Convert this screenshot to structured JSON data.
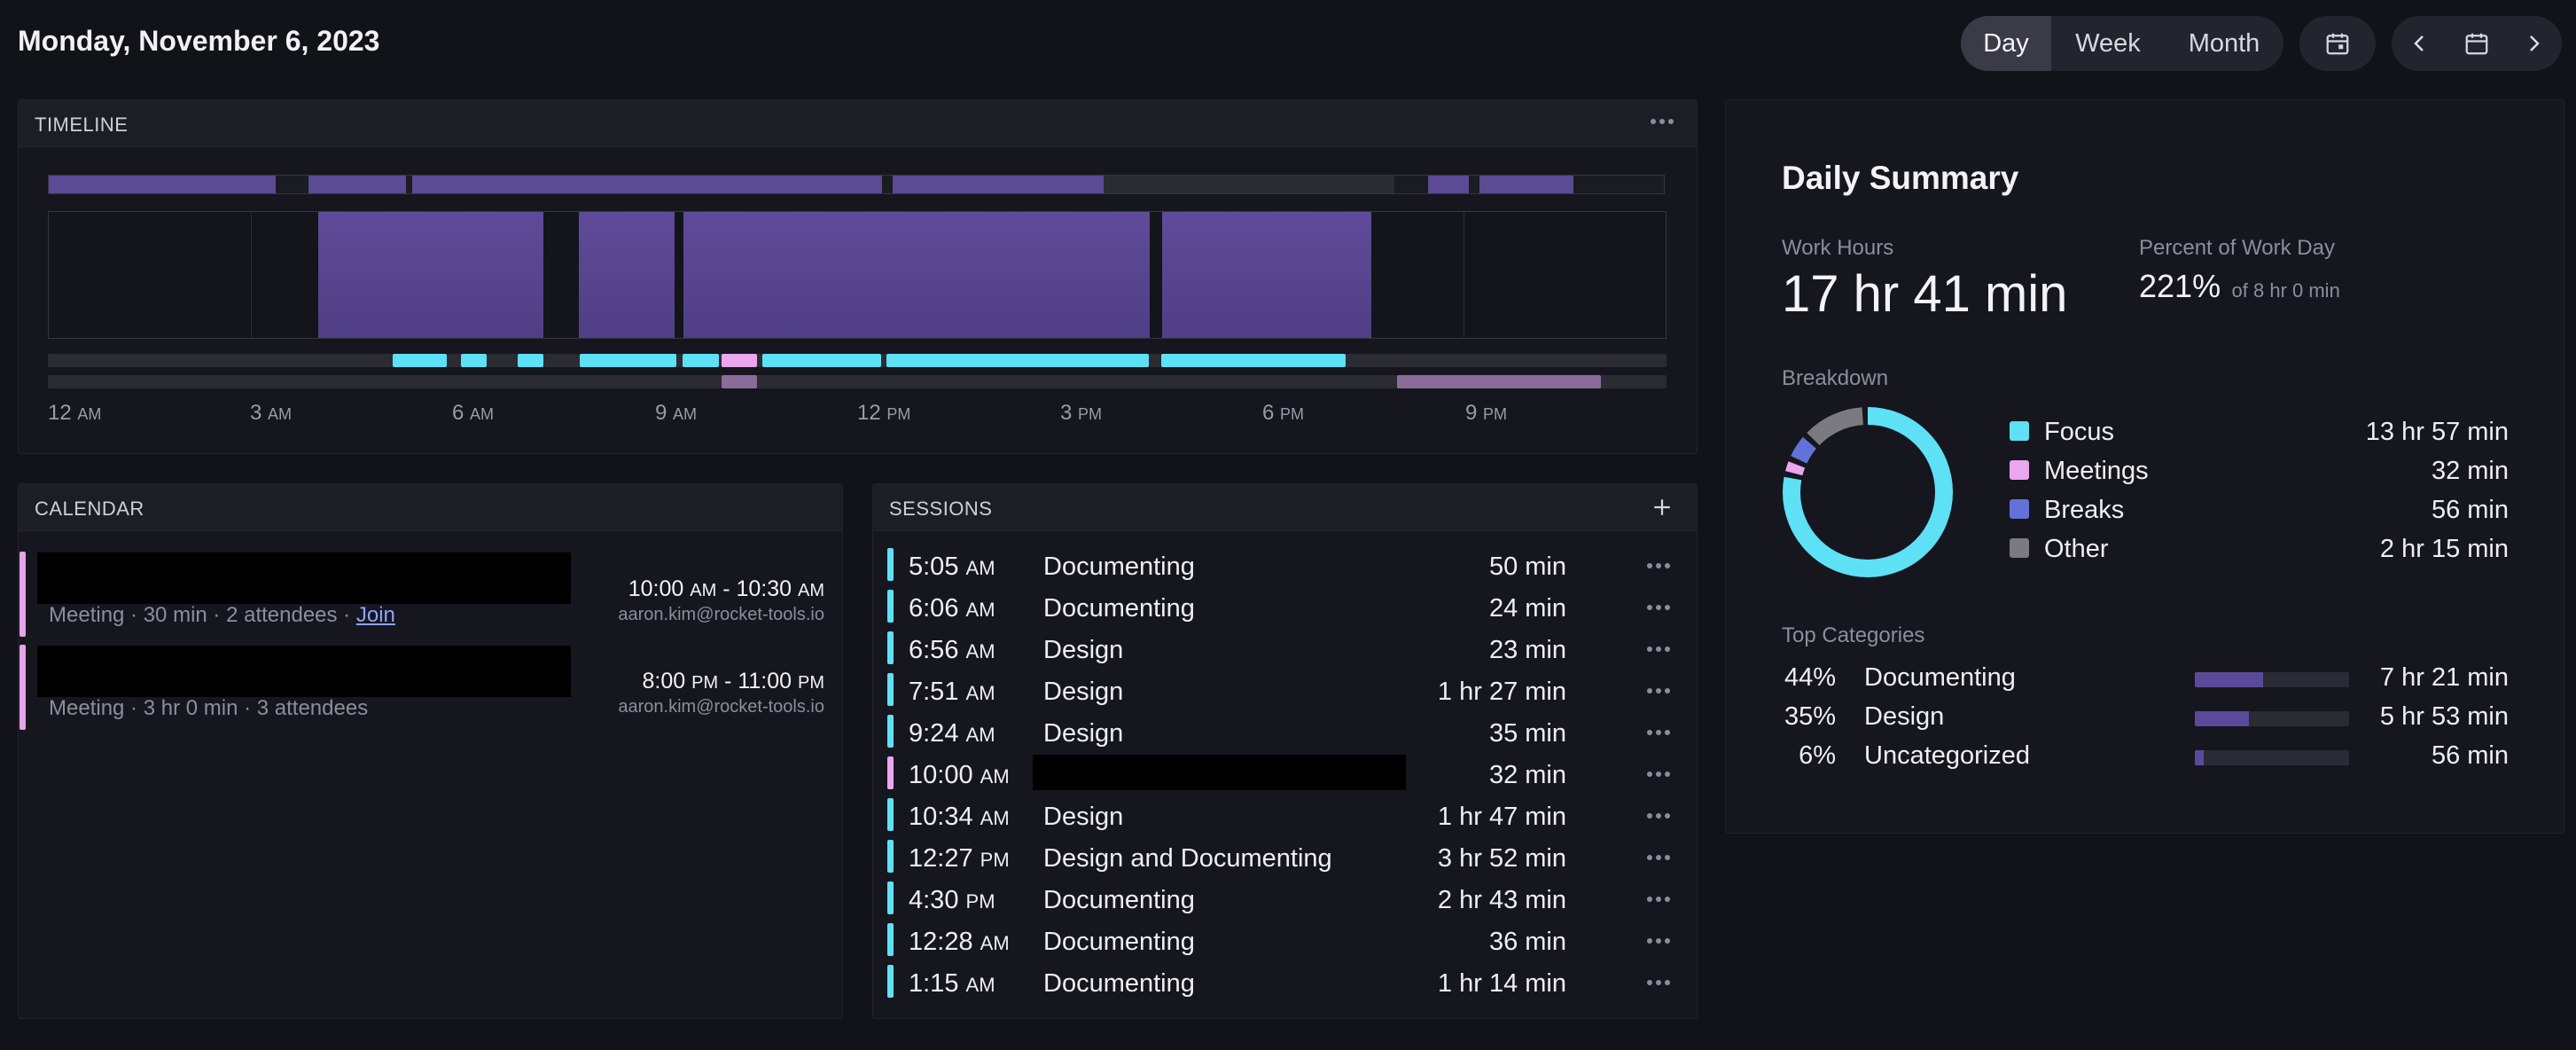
{
  "header": {
    "date": "Monday, November 6, 2023",
    "views": [
      "Day",
      "Week",
      "Month"
    ],
    "active_view": "Day"
  },
  "timeline": {
    "title": "TIMELINE",
    "ticks": [
      {
        "num": "12",
        "ampm": "AM"
      },
      {
        "num": "3",
        "ampm": "AM"
      },
      {
        "num": "6",
        "ampm": "AM"
      },
      {
        "num": "9",
        "ampm": "AM"
      },
      {
        "num": "12",
        "ampm": "PM"
      },
      {
        "num": "3",
        "ampm": "PM"
      },
      {
        "num": "6",
        "ampm": "PM"
      },
      {
        "num": "9",
        "ampm": "PM"
      }
    ]
  },
  "calendar": {
    "title": "CALENDAR",
    "events": [
      {
        "meta": "Meeting · 30 min · 2 attendees ·",
        "join": "Join",
        "time_start": "10:00",
        "start_ampm": "AM",
        "sep": " - ",
        "time_end": "10:30",
        "end_ampm": "AM",
        "email": "aaron.kim@rocket-tools.io"
      },
      {
        "meta": "Meeting · 3 hr 0 min · 3 attendees",
        "join": "",
        "time_start": "8:00",
        "start_ampm": "PM",
        "sep": " - ",
        "time_end": "11:00",
        "end_ampm": "PM",
        "email": "aaron.kim@rocket-tools.io"
      }
    ]
  },
  "sessions": {
    "title": "SESSIONS",
    "rows": [
      {
        "time": "5:05",
        "ampm": "AM",
        "name": "Documenting",
        "duration": "50 min",
        "type": "focus"
      },
      {
        "time": "6:06",
        "ampm": "AM",
        "name": "Documenting",
        "duration": "24 min",
        "type": "focus"
      },
      {
        "time": "6:56",
        "ampm": "AM",
        "name": "Design",
        "duration": "23 min",
        "type": "focus"
      },
      {
        "time": "7:51",
        "ampm": "AM",
        "name": "Design",
        "duration": "1 hr 27 min",
        "type": "focus"
      },
      {
        "time": "9:24",
        "ampm": "AM",
        "name": "Design",
        "duration": "35 min",
        "type": "focus"
      },
      {
        "time": "10:00",
        "ampm": "AM",
        "name": "",
        "duration": "32 min",
        "type": "meeting"
      },
      {
        "time": "10:34",
        "ampm": "AM",
        "name": "Design",
        "duration": "1 hr 47 min",
        "type": "focus"
      },
      {
        "time": "12:27",
        "ampm": "PM",
        "name": "Design and Documenting",
        "duration": "3 hr 52 min",
        "type": "focus"
      },
      {
        "time": "4:30",
        "ampm": "PM",
        "name": "Documenting",
        "duration": "2 hr 43 min",
        "type": "focus"
      },
      {
        "time": "12:28",
        "ampm": "AM",
        "name": "Documenting",
        "duration": "36 min",
        "type": "focus"
      },
      {
        "time": "1:15",
        "ampm": "AM",
        "name": "Documenting",
        "duration": "1 hr 14 min",
        "type": "focus"
      }
    ]
  },
  "summary": {
    "title": "Daily Summary",
    "work_hours_label": "Work Hours",
    "work_hours": "17 hr 41 min",
    "percent_label": "Percent of Work Day",
    "percent": "221%",
    "percent_of": "of 8 hr 0 min",
    "breakdown_label": "Breakdown",
    "breakdown": [
      {
        "name": "Focus",
        "value": "13 hr 57 min",
        "minutes": 837,
        "color": "#5ee0f5"
      },
      {
        "name": "Meetings",
        "value": "32 min",
        "minutes": 32,
        "color": "#eaa6ee"
      },
      {
        "name": "Breaks",
        "value": "56 min",
        "minutes": 56,
        "color": "#6272d8"
      },
      {
        "name": "Other",
        "value": "2 hr 15 min",
        "minutes": 135,
        "color": "#7a7a80"
      }
    ],
    "top_categories_label": "Top Categories",
    "categories": [
      {
        "pct": "44%",
        "name": "Documenting",
        "value": "7 hr 21 min",
        "fraction": 0.44
      },
      {
        "pct": "35%",
        "name": "Design",
        "value": "5 hr 53 min",
        "fraction": 0.35
      },
      {
        "pct": "6%",
        "name": "Uncategorized",
        "value": "56 min",
        "fraction": 0.06
      }
    ]
  },
  "colors": {
    "focus": "#5ee0f5",
    "meeting": "#eaa6ee",
    "work_block": "#5b4a94",
    "accent": "#8aa6ff"
  }
}
